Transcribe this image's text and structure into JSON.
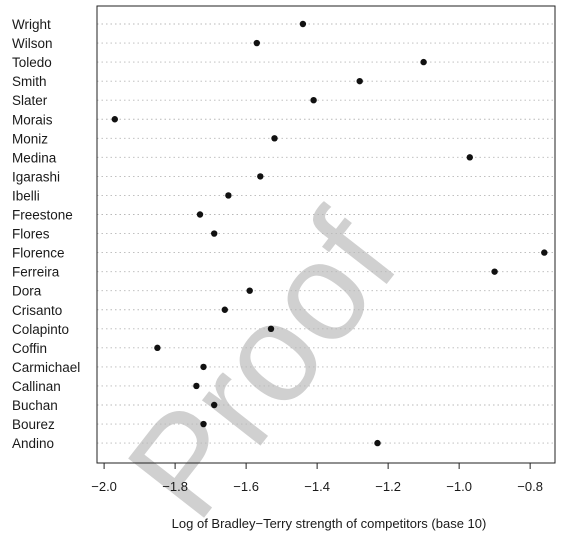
{
  "watermark": "Proof",
  "chart_data": {
    "type": "scatter",
    "title": "",
    "xlabel": "Log of Bradley−Terry strength of competitors (base 10)",
    "ylabel": "",
    "xlim": [
      -2.02,
      -0.73
    ],
    "xticks": [
      "−2.0",
      "−1.8",
      "−1.6",
      "−1.4",
      "−1.2",
      "−1.0",
      "−0.8"
    ],
    "xtick_values": [
      -2.0,
      -1.8,
      -1.6,
      -1.4,
      -1.2,
      -1.0,
      -0.8
    ],
    "grid": "horizontal dotted",
    "categories": [
      "Wright",
      "Wilson",
      "Toledo",
      "Smith",
      "Slater",
      "Morais",
      "Moniz",
      "Medina",
      "Igarashi",
      "Ibelli",
      "Freestone",
      "Flores",
      "Florence",
      "Ferreira",
      "Dora",
      "Crisanto",
      "Colapinto",
      "Coffin",
      "Carmichael",
      "Callinan",
      "Buchan",
      "Bourez",
      "Andino"
    ],
    "values": [
      -1.44,
      -1.57,
      -1.1,
      -1.28,
      -1.41,
      -1.97,
      -1.52,
      -0.97,
      -1.56,
      -1.65,
      -1.73,
      -1.69,
      -0.76,
      -0.9,
      -1.59,
      -1.66,
      -1.53,
      -1.85,
      -1.72,
      -1.74,
      -1.69,
      -1.72,
      -1.23
    ]
  }
}
